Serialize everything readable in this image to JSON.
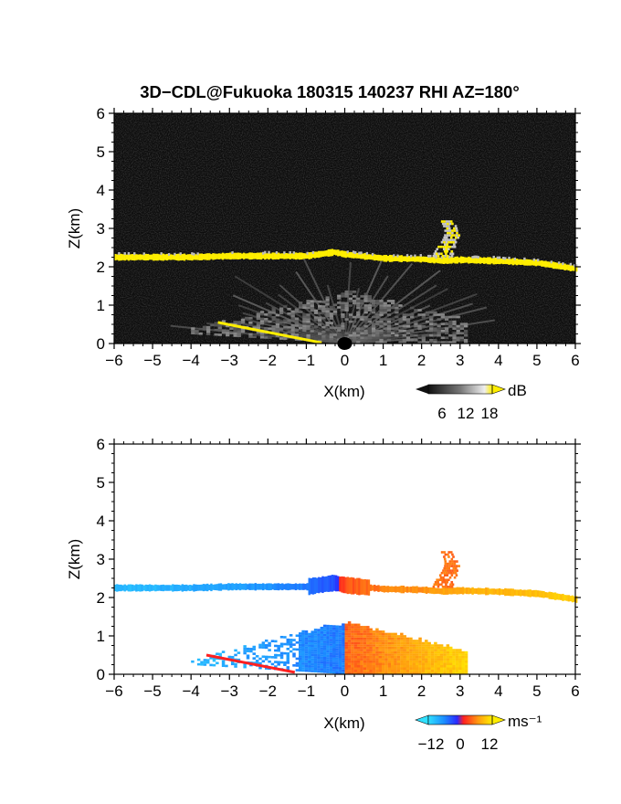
{
  "title": "3D−CDL@Fukuoka 180315 140237 RHI AZ=180°",
  "colors": {
    "yellow": "#ffee00",
    "frame": "#000000",
    "panel1_bg": "#0d0d0d",
    "panel2_bg": "#ffffff"
  },
  "chart_data": [
    {
      "type": "heatmap",
      "name": "reflectivity",
      "xlabel": "X(km)",
      "ylabel": "Z(km)",
      "xlim": [
        -6,
        6
      ],
      "ylim": [
        0,
        6
      ],
      "x_ticks": [
        "−6",
        "−5",
        "−4",
        "−3",
        "−2",
        "−1",
        "0",
        "1",
        "2",
        "3",
        "4",
        "5",
        "6"
      ],
      "y_ticks": [
        "0",
        "1",
        "2",
        "3",
        "4",
        "5",
        "6"
      ],
      "colorbar": {
        "unit": "dB",
        "ticks": [
          "6",
          "12",
          "18"
        ],
        "range": [
          0,
          20
        ]
      },
      "cloud_layer": {
        "x": [
          -6,
          -5,
          -4,
          -3,
          -2,
          -1,
          -0.3,
          0,
          1,
          2,
          2.5,
          3,
          4,
          5,
          6
        ],
        "z": [
          2.25,
          2.25,
          2.25,
          2.28,
          2.28,
          2.28,
          2.38,
          2.32,
          2.22,
          2.2,
          2.16,
          2.18,
          2.15,
          2.1,
          1.95
        ],
        "dB": 18
      },
      "cloud_tower": {
        "x": [
          2.4,
          2.9
        ],
        "z_top": 3.2,
        "dB": 15
      },
      "near_field_echo": {
        "x": [
          -4,
          3.2
        ],
        "z_max": 1.3,
        "dB": [
          4,
          10
        ]
      }
    },
    {
      "type": "heatmap",
      "name": "doppler_velocity",
      "xlabel": "X(km)",
      "ylabel": "Z(km)",
      "xlim": [
        -6,
        6
      ],
      "ylim": [
        0,
        6
      ],
      "x_ticks": [
        "−6",
        "−5",
        "−4",
        "−3",
        "−2",
        "−1",
        "0",
        "1",
        "2",
        "3",
        "4",
        "5",
        "6"
      ],
      "y_ticks": [
        "0",
        "1",
        "2",
        "3",
        "4",
        "5",
        "6"
      ],
      "colorbar": {
        "unit": "ms⁻¹",
        "ticks": [
          "−12",
          "0",
          "12"
        ],
        "range": [
          -15,
          15
        ]
      },
      "cloud_layer": {
        "x": [
          -6,
          -5,
          -4,
          -3,
          -2,
          -1,
          -0.3,
          0,
          1,
          2,
          2.5,
          3,
          4,
          5,
          6
        ],
        "z": [
          2.25,
          2.25,
          2.25,
          2.28,
          2.28,
          2.28,
          2.38,
          2.32,
          2.22,
          2.2,
          2.16,
          2.18,
          2.15,
          2.1,
          1.95
        ],
        "velocity_ms": [
          -12,
          -11,
          -10,
          -9,
          -8,
          -6,
          -3,
          3,
          6,
          7,
          8,
          9,
          10,
          11,
          12
        ]
      },
      "cloud_tower": {
        "x": [
          2.4,
          2.9
        ],
        "z_top": 3.2,
        "velocity_ms": 5
      },
      "near_field_echo": {
        "x": [
          -4,
          3.2
        ],
        "z_max": 1.3,
        "velocity_range_ms": [
          -11,
          12
        ]
      }
    }
  ]
}
